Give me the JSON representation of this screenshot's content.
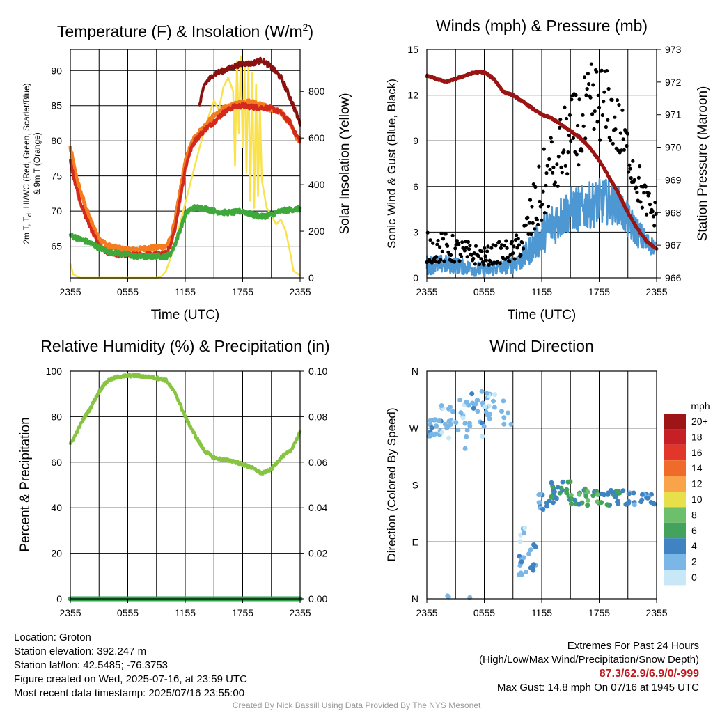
{
  "colors": {
    "t2m": "#d42a1e",
    "dewpoint": "#3ea83a",
    "heat_index": "#8b1010",
    "t9m": "#f47c20",
    "insolation": "#f9e24c",
    "wind": "#4d97d3",
    "gust": "#000000",
    "pressure": "#9a1414",
    "rh": "#86c441",
    "precip": "#2ea34a",
    "highlight": "#c0191c"
  },
  "chart_data": [
    {
      "id": "temp",
      "type": "line",
      "title": "Temperature (F) & Insolation (W/m²)",
      "xlabel": "Time (UTC)",
      "ylabel": "2m T, Td, HI/WC (Red, Green, Scarlet/Blue) & 9m T (Orange)",
      "y2label": "Solar Insolation (Yellow)",
      "xticks": [
        "2355",
        "0555",
        "1155",
        "1755",
        "2355"
      ],
      "x_hours": [
        0,
        6,
        12,
        18,
        24
      ],
      "ylim": [
        60.5,
        93
      ],
      "yticks": [
        65,
        70,
        75,
        80,
        85,
        90
      ],
      "y2lim": [
        0,
        980
      ],
      "y2ticks": [
        0,
        200,
        400,
        600,
        800
      ],
      "x_range": [
        0,
        24
      ],
      "series": [
        {
          "key": "t9m",
          "axis": "y",
          "width": 5,
          "x": [
            0,
            0.5,
            1,
            1.5,
            2,
            2.5,
            3,
            4,
            5,
            6,
            7,
            8,
            9,
            10,
            10.5,
            11,
            11.5,
            12,
            12.5,
            13,
            14,
            15,
            16,
            17,
            18,
            19,
            20,
            21,
            22,
            23,
            23.5,
            24
          ],
          "y": [
            79,
            75.5,
            73,
            71,
            69,
            67.5,
            66,
            65,
            64.7,
            64.5,
            64.5,
            64.7,
            64.8,
            65,
            66,
            69,
            73,
            77,
            79,
            80.5,
            82,
            83.5,
            84.5,
            85,
            85.5,
            85.5,
            85,
            84.5,
            84,
            82.5,
            80.8,
            80
          ]
        },
        {
          "key": "t2m",
          "axis": "y",
          "width": 4,
          "x": [
            0,
            0.5,
            1,
            1.5,
            2,
            2.5,
            3,
            4,
            5,
            6,
            7,
            8,
            9,
            10,
            10.5,
            11,
            11.5,
            12,
            12.5,
            13,
            14,
            15,
            16,
            17,
            18,
            19,
            20,
            21,
            22,
            23,
            23.5,
            24
          ],
          "y": [
            77,
            74,
            71.5,
            69.5,
            68,
            66.5,
            65,
            64,
            63.8,
            63.8,
            63.7,
            63.8,
            63.8,
            64,
            65,
            68,
            72,
            76,
            78.5,
            80,
            81.5,
            82.7,
            84,
            84.8,
            85,
            84.8,
            84.7,
            84.6,
            84,
            82.5,
            81,
            80
          ]
        },
        {
          "key": "dewpoint",
          "axis": "y",
          "width": 4.5,
          "x": [
            0,
            0.5,
            1,
            2,
            3,
            4,
            5,
            6,
            7,
            8,
            9,
            10,
            10.5,
            11,
            11.5,
            12,
            12.5,
            13,
            14,
            15,
            16,
            17,
            18,
            19,
            20,
            21,
            22,
            23,
            24
          ],
          "y": [
            66.5,
            66.3,
            66,
            65.5,
            64.8,
            64.2,
            64,
            63.8,
            63.5,
            63.5,
            63.6,
            63.5,
            64,
            65.5,
            67.5,
            69.5,
            70.2,
            70.5,
            70.4,
            70,
            69.8,
            69.8,
            70,
            69.5,
            69.2,
            69.5,
            70,
            70.2,
            70.3
          ]
        },
        {
          "key": "heat_index",
          "axis": "y",
          "width": 4,
          "x": [
            13.5,
            14,
            15,
            16,
            17,
            18,
            18.5,
            19,
            20,
            21,
            22,
            23,
            24
          ],
          "y": [
            85,
            88,
            89.5,
            90,
            90.5,
            91,
            91,
            91,
            91.5,
            90.5,
            89,
            86,
            82.5
          ]
        },
        {
          "key": "insolation",
          "axis": "y2",
          "width": 2.5,
          "x": [
            0,
            0.3,
            1,
            9,
            9.5,
            10,
            10.5,
            11,
            11.5,
            12,
            12.5,
            13,
            13.5,
            14,
            14.5,
            15,
            15.5,
            16,
            16.5,
            17,
            17.2,
            17.4,
            17.6,
            17.8,
            18,
            18.2,
            18.4,
            18.6,
            18.8,
            19,
            19.2,
            19.4,
            19.6,
            19.8,
            20,
            20.5,
            21,
            21.5,
            22,
            22.5,
            23,
            23.3,
            24
          ],
          "y": [
            60,
            15,
            0,
            0,
            5,
            30,
            90,
            160,
            240,
            320,
            400,
            480,
            560,
            630,
            700,
            760,
            720,
            820,
            860,
            800,
            480,
            930,
            620,
            950,
            560,
            900,
            450,
            930,
            330,
            880,
            300,
            830,
            350,
            740,
            420,
            300,
            270,
            230,
            250,
            200,
            100,
            30,
            10
          ]
        }
      ]
    },
    {
      "id": "winds",
      "type": "scatter",
      "title": "Winds (mph) & Pressure (mb)",
      "xlabel": "Time (UTC)",
      "ylabel": "Sonic Wind & Gust (Blue, Black)",
      "y2label": "Station Pressure (Maroon)",
      "xticks": [
        "2355",
        "0555",
        "1155",
        "1755",
        "2355"
      ],
      "x_hours": [
        0,
        6,
        12,
        18,
        24
      ],
      "ylim": [
        0,
        15
      ],
      "yticks": [
        0,
        3,
        6,
        9,
        12,
        15
      ],
      "y2lim": [
        966,
        973
      ],
      "y2ticks": [
        966,
        967,
        968,
        969,
        970,
        971,
        972,
        973
      ],
      "x_range": [
        0,
        24
      ],
      "gust_envelope": {
        "x": [
          0,
          2,
          4,
          6,
          8,
          9,
          10,
          11,
          12,
          13,
          14,
          15,
          16,
          17,
          18,
          19,
          20,
          21,
          22,
          23,
          24
        ],
        "lo": [
          1,
          1,
          1,
          0.8,
          1,
          1,
          1.5,
          2.5,
          3.5,
          5,
          6,
          7,
          7.5,
          8,
          9,
          9,
          8,
          7,
          5,
          4,
          3
        ],
        "hi": [
          3,
          3,
          2.5,
          2,
          2.5,
          2.5,
          3.5,
          6,
          8,
          10,
          11,
          12,
          12.5,
          14,
          14.8,
          13.5,
          12,
          10,
          8,
          6,
          5
        ]
      },
      "wind_envelope": {
        "x": [
          0,
          2,
          4,
          6,
          8,
          9,
          10,
          11,
          12,
          13,
          14,
          15,
          16,
          17,
          18,
          19,
          20,
          21,
          22,
          23,
          24
        ],
        "lo": [
          0.2,
          0.3,
          0.2,
          0,
          0.2,
          0.3,
          0.5,
          1,
          1.5,
          2,
          2.5,
          3,
          3,
          3.2,
          3.5,
          3.5,
          3.5,
          2.5,
          2,
          1.5,
          1.5
        ],
        "hi": [
          1.5,
          1.5,
          1.2,
          1,
          1.2,
          1.5,
          2,
          3,
          4,
          5,
          5.5,
          6,
          6,
          6.3,
          6.5,
          6.5,
          6,
          5,
          4,
          3,
          2.5
        ]
      },
      "series": [
        {
          "key": "pressure",
          "axis": "y2",
          "width": 5,
          "x": [
            0,
            1,
            2,
            3,
            4,
            5,
            6,
            7,
            8,
            9,
            10,
            11,
            12,
            13,
            14,
            15,
            16,
            17,
            18,
            19,
            20,
            21,
            22,
            23,
            24
          ],
          "y": [
            972.2,
            972.1,
            972,
            972.1,
            972.2,
            972.3,
            972.3,
            972.1,
            971.7,
            971.6,
            971.4,
            971.2,
            971.0,
            970.9,
            970.7,
            970.5,
            970.3,
            970.0,
            969.6,
            969.1,
            968.6,
            968.0,
            967.5,
            967.1,
            966.9
          ]
        }
      ]
    },
    {
      "id": "rh",
      "type": "line",
      "title": "Relative Humidity (%) & Precipitation (in)",
      "ylabel": "Percent & Precipitation",
      "xticks": [
        "2355",
        "0555",
        "1155",
        "1755",
        "2355"
      ],
      "x_hours": [
        0,
        6,
        12,
        18,
        24
      ],
      "ylim": [
        0,
        100
      ],
      "yticks": [
        0,
        20,
        40,
        60,
        80,
        100
      ],
      "y2lim": [
        0,
        0.1
      ],
      "y2ticks": [
        "0.00",
        "0.02",
        "0.04",
        "0.06",
        "0.08",
        "0.10"
      ],
      "x_range": [
        0,
        24
      ],
      "series": [
        {
          "key": "rh",
          "axis": "y",
          "width": 4.5,
          "x": [
            0,
            0.3,
            1,
            1.5,
            2,
            3,
            3.5,
            4,
            5,
            6,
            7,
            8,
            9,
            10,
            11,
            12,
            13,
            14,
            15,
            16,
            17,
            18,
            19,
            20,
            21,
            22,
            23,
            23.5,
            24
          ],
          "y": [
            68,
            70,
            76,
            80,
            83,
            91,
            94,
            96,
            97.5,
            98,
            98,
            97.5,
            97,
            96,
            90,
            80,
            72,
            65,
            62,
            61,
            60.5,
            59,
            57.5,
            55,
            57,
            62,
            65,
            69,
            73
          ]
        },
        {
          "key": "precip",
          "axis": "y2",
          "width": 7,
          "x": [
            0,
            24
          ],
          "y": [
            0,
            0
          ]
        }
      ]
    },
    {
      "id": "wdir",
      "type": "scatter",
      "title": "Wind Direction",
      "ylabel": "Direction (Colored By Speed)",
      "xticks": [
        "2355",
        "0555",
        "1155",
        "1755",
        "2355"
      ],
      "x_hours": [
        0,
        6,
        12,
        18,
        24
      ],
      "yticks": [
        "N",
        "E",
        "S",
        "W",
        "N"
      ],
      "ylim": [
        0,
        360
      ],
      "x_range": [
        0,
        24
      ],
      "legend": {
        "title": "mph",
        "labels": [
          "20+",
          "18",
          "16",
          "14",
          "12",
          "10",
          "8",
          "6",
          "4",
          "2",
          "0"
        ],
        "colors": [
          "#9e1518",
          "#c62026",
          "#e3362b",
          "#f06a2a",
          "#f9a34a",
          "#e8e04a",
          "#6cc06b",
          "#43a25b",
          "#3f83c3",
          "#7ab6e6",
          "#c8e8f8"
        ]
      }
    }
  ],
  "info_left": {
    "location": "Location: Groton",
    "elevation": "Station elevation: 392.247 m",
    "latlon": "Station lat/lon: 42.5485; -76.3753",
    "created": "Figure created on Wed, 2025-07-16, at 23:59 UTC",
    "recent": "Most recent data timestamp: 2025/07/16 23:55:00"
  },
  "info_right": {
    "title": "Extremes For Past 24 Hours",
    "subtitle": "(High/Low/Max Wind/Precipitation/Snow Depth)",
    "values": "87.3/62.9/6.9/0/-999",
    "max_gust": "Max Gust: 14.8 mph On 07/16 at 1945 UTC"
  },
  "credit": "Created By Nick Bassill Using Data Provided By The NYS Mesonet"
}
